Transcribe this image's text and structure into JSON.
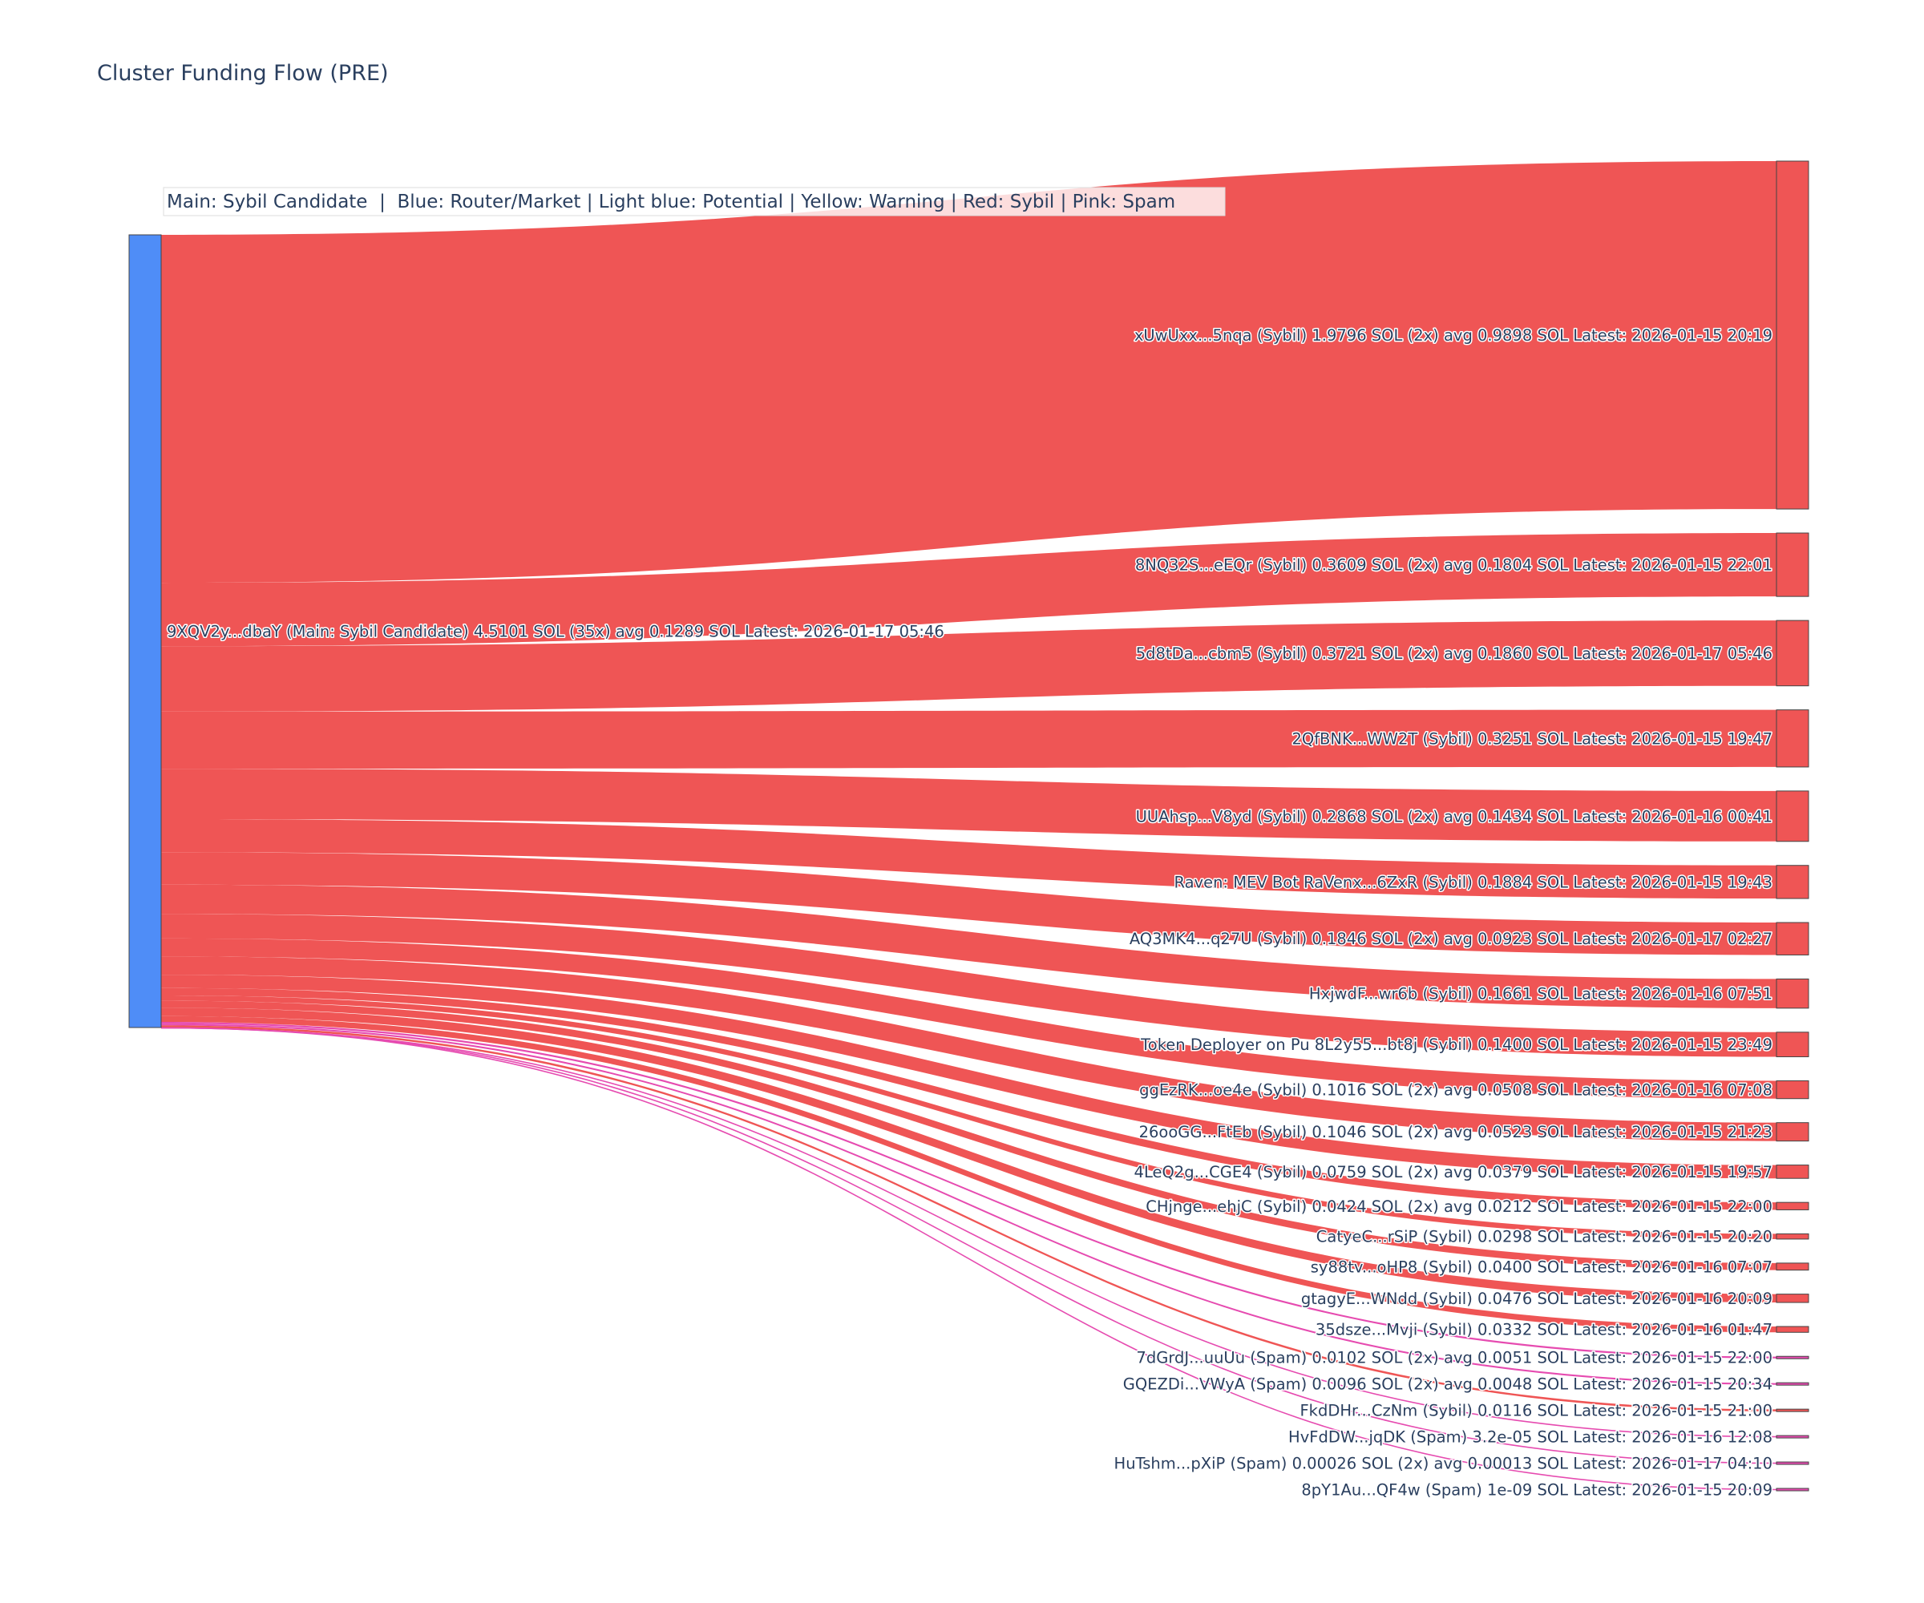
{
  "chart_data": {
    "type": "sankey",
    "title": "Cluster Funding Flow (PRE)",
    "legend_text": "Main: Sybil Candidate  |  Blue: Router/Market | Light blue: Potential | Yellow: Warning | Red: Sybil | Pink: Spam",
    "colors": {
      "main_node": "#4f8df7",
      "sybil": "#ef5555",
      "spam": "#e64bb0",
      "node_border": "#444444",
      "label": "#2a3f5f"
    },
    "source": {
      "label": "9XQV2y...dbaY (Main: Sybil Candidate) 4.5101 SOL (35x) avg 0.1289 SOL Latest: 2026-01-17 05:46",
      "value": 4.5101,
      "count": 35
    },
    "targets": [
      {
        "label": "xUwUxx...5nqa (Sybil) 1.9796 SOL (2x) avg 0.9898 SOL Latest: 2026-01-15 20:19",
        "value": 1.9796,
        "category": "sybil"
      },
      {
        "label": "8NQ32S...eEQr (Sybil) 0.3609 SOL (2x) avg 0.1804 SOL Latest: 2026-01-15 22:01",
        "value": 0.3609,
        "category": "sybil"
      },
      {
        "label": "5d8tDa...cbm5 (Sybil) 0.3721 SOL (2x) avg 0.1860 SOL Latest: 2026-01-17 05:46",
        "value": 0.3721,
        "category": "sybil"
      },
      {
        "label": "2QfBNK...WW2T (Sybil) 0.3251 SOL Latest: 2026-01-15 19:47",
        "value": 0.3251,
        "category": "sybil"
      },
      {
        "label": "UUAhsp...V8yd (Sybil) 0.2868 SOL (2x) avg 0.1434 SOL Latest: 2026-01-16 00:41",
        "value": 0.2868,
        "category": "sybil"
      },
      {
        "label": "Raven: MEV Bot RaVenx...6ZxR (Sybil) 0.1884 SOL Latest: 2026-01-15 19:43",
        "value": 0.1884,
        "category": "sybil"
      },
      {
        "label": "AQ3MK4...q27U (Sybil) 0.1846 SOL (2x) avg 0.0923 SOL Latest: 2026-01-17 02:27",
        "value": 0.1846,
        "category": "sybil"
      },
      {
        "label": "HxjwdF...wr6b (Sybil) 0.1661 SOL Latest: 2026-01-16 07:51",
        "value": 0.1661,
        "category": "sybil"
      },
      {
        "label": "Token Deployer on Pu 8L2y55...bt8j (Sybil) 0.1400 SOL Latest: 2026-01-15 23:49",
        "value": 0.14,
        "category": "sybil"
      },
      {
        "label": "ggEzRK...oe4e (Sybil) 0.1016 SOL (2x) avg 0.0508 SOL Latest: 2026-01-16 07:08",
        "value": 0.1016,
        "category": "sybil"
      },
      {
        "label": "26ooGG...FtEb (Sybil) 0.1046 SOL (2x) avg 0.0523 SOL Latest: 2026-01-15 21:23",
        "value": 0.1046,
        "category": "sybil"
      },
      {
        "label": "4LeQ2g...CGE4 (Sybil) 0.0759 SOL (2x) avg 0.0379 SOL Latest: 2026-01-15 19:57",
        "value": 0.0759,
        "category": "sybil"
      },
      {
        "label": "CHjnge...ehjC (Sybil) 0.0424 SOL (2x) avg 0.0212 SOL Latest: 2026-01-15 22:00",
        "value": 0.0424,
        "category": "sybil"
      },
      {
        "label": "CatyeC...rSiP (Sybil) 0.0298 SOL Latest: 2026-01-15 20:20",
        "value": 0.0298,
        "category": "sybil"
      },
      {
        "label": "sy88tv...oHP8 (Sybil) 0.0400 SOL Latest: 2026-01-16 07:07",
        "value": 0.04,
        "category": "sybil"
      },
      {
        "label": "gtagyE...WNdd (Sybil) 0.0476 SOL Latest: 2026-01-16 20:09",
        "value": 0.0476,
        "category": "sybil"
      },
      {
        "label": "35dsze...Mvji (Sybil) 0.0332 SOL Latest: 2026-01-16 01:47",
        "value": 0.0332,
        "category": "sybil"
      },
      {
        "label": "7dGrdJ...uuUu (Spam) 0.0102 SOL (2x) avg 0.0051 SOL Latest: 2026-01-15 22:00",
        "value": 0.0102,
        "category": "spam"
      },
      {
        "label": "GQEZDi...VWyA (Spam) 0.0096 SOL (2x) avg 0.0048 SOL Latest: 2026-01-15 20:34",
        "value": 0.0096,
        "category": "spam"
      },
      {
        "label": "FkdDHr...CzNm (Sybil) 0.0116 SOL Latest: 2026-01-15 21:00",
        "value": 0.0116,
        "category": "sybil"
      },
      {
        "label": "HvFdDW...jqDK (Spam) 3.2e-05 SOL Latest: 2026-01-16 12:08",
        "value": 3.2e-05,
        "category": "spam"
      },
      {
        "label": "HuTshm...pXiP (Spam) 0.00026 SOL (2x) avg 0.00013 SOL Latest: 2026-01-17 04:10",
        "value": 0.00026,
        "category": "spam"
      },
      {
        "label": "8pY1Au...QF4w (Spam) 1e-09 SOL Latest: 2026-01-15 20:09",
        "value": 1e-09,
        "category": "spam"
      }
    ]
  }
}
